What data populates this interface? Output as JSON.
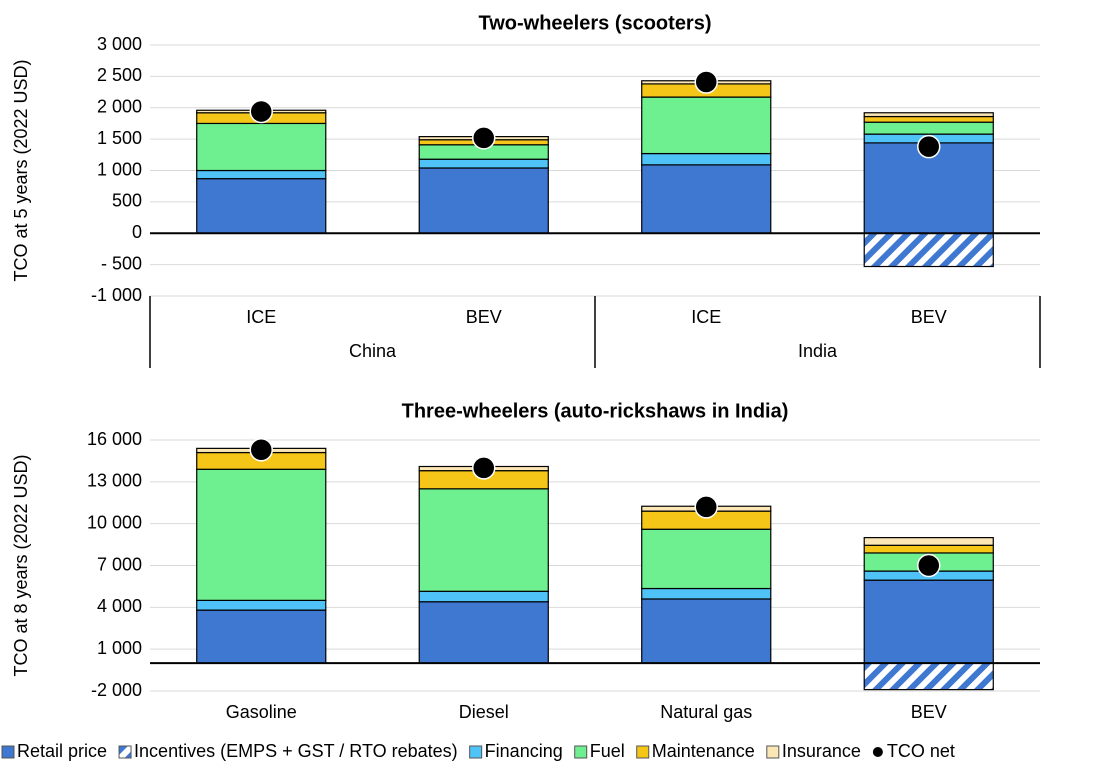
{
  "legend": [
    {
      "name": "Retail price",
      "color": "#3f78d1"
    },
    {
      "name": "Incentives (EMPS + GST / RTO rebates)",
      "color": "#3f78d1",
      "pattern": "hatch"
    },
    {
      "name": "Financing",
      "color": "#4fc3f7"
    },
    {
      "name": "Fuel",
      "color": "#6ef090"
    },
    {
      "name": "Maintenance",
      "color": "#f5c518"
    },
    {
      "name": "Insurance",
      "color": "#fbe7b5"
    }
  ],
  "marker": {
    "name": "TCO net",
    "color": "#000000"
  },
  "chart_data": [
    {
      "type": "stacked_bar",
      "title": "Two-wheelers (scooters)",
      "y_label": "TCO at 5 years (2022 USD)",
      "categories": [
        "ICE",
        "BEV",
        "ICE",
        "BEV"
      ],
      "group_labels": [
        "China",
        "India"
      ],
      "ylim": [
        -1000,
        3000
      ],
      "yticks": [
        {
          "value": -1000,
          "label": "-1 000"
        },
        {
          "value": -500,
          "label": "- 500"
        },
        0,
        500,
        {
          "value": 1000,
          "label": "1 000"
        },
        {
          "value": 1500,
          "label": "1 500"
        },
        {
          "value": 2000,
          "label": "2 000"
        },
        {
          "value": 2500,
          "label": "2 500"
        },
        {
          "value": 3000,
          "label": "3 000"
        }
      ],
      "grid": true,
      "series": [
        {
          "values": [
            870,
            1040,
            1090,
            1440
          ]
        },
        {
          "values": [
            0,
            0,
            0,
            -530
          ]
        },
        {
          "values": [
            130,
            140,
            180,
            140
          ]
        },
        {
          "values": [
            750,
            230,
            900,
            190
          ]
        },
        {
          "values": [
            170,
            80,
            210,
            90
          ]
        },
        {
          "values": [
            40,
            50,
            50,
            60
          ]
        }
      ],
      "tco_net": [
        1940,
        1520,
        2410,
        1380
      ]
    },
    {
      "type": "stacked_bar",
      "title": "Three-wheelers (auto-rickshaws in India)",
      "y_label": "TCO at 8 years (2022 USD)",
      "categories": [
        "Gasoline",
        "Diesel",
        "Natural gas",
        "BEV"
      ],
      "ylim": [
        -2000,
        16000
      ],
      "yticks": [
        {
          "value": -2000,
          "label": "-2 000"
        },
        {
          "value": 1000,
          "label": "1 000"
        },
        {
          "value": 4000,
          "label": "4 000"
        },
        {
          "value": 7000,
          "label": "7 000"
        },
        {
          "value": 10000,
          "label": "10 000"
        },
        {
          "value": 13000,
          "label": "13 000"
        },
        {
          "value": 16000,
          "label": "16 000"
        }
      ],
      "grid": true,
      "series": [
        {
          "values": [
            3800,
            4400,
            4600,
            5950
          ]
        },
        {
          "values": [
            0,
            0,
            0,
            -1900
          ]
        },
        {
          "values": [
            700,
            750,
            750,
            650
          ]
        },
        {
          "values": [
            9400,
            7350,
            4250,
            1300
          ]
        },
        {
          "values": [
            1200,
            1300,
            1300,
            550
          ]
        },
        {
          "values": [
            300,
            300,
            350,
            550
          ]
        }
      ],
      "tco_net": [
        15300,
        14000,
        11200,
        7000
      ]
    }
  ]
}
